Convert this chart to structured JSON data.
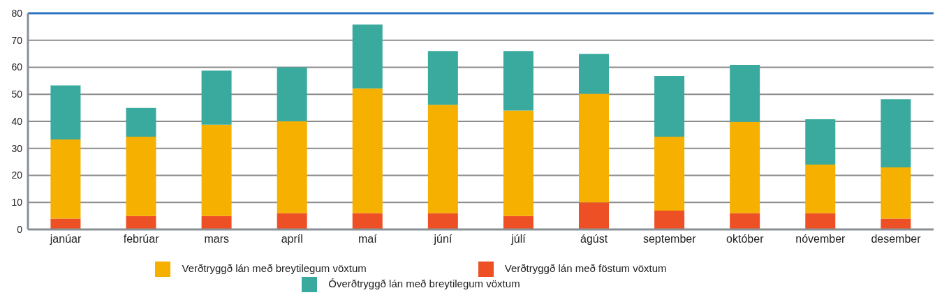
{
  "chart_data": {
    "type": "bar",
    "stacked": true,
    "categories": [
      "janúar",
      "febrúar",
      "mars",
      "apríl",
      "maí",
      "júní",
      "júlí",
      "ágúst",
      "september",
      "október",
      "nóvember",
      "desember"
    ],
    "series": [
      {
        "name": "Verðtryggð lán með föstum vöxtum",
        "color": "#ee5025",
        "values": [
          4,
          5,
          5,
          6,
          6,
          6,
          5,
          10,
          7,
          6,
          6,
          4
        ]
      },
      {
        "name": "Verðtryggð lán með breytilegum vöxtum",
        "color": "#f5b000",
        "values": [
          29.3,
          29.3,
          33.8,
          34,
          46.2,
          40.1,
          39,
          40.2,
          27.3,
          33.8,
          18,
          19
        ]
      },
      {
        "name": "Óverðtryggð lán með breytilegum vöxtum",
        "color": "#3aa99e",
        "values": [
          20,
          10.7,
          20,
          20,
          23.6,
          19.9,
          22,
          14.8,
          22.5,
          21.1,
          16.8,
          25.2
        ]
      }
    ],
    "ylim": [
      0,
      80
    ],
    "yticks": [
      0,
      10,
      20,
      30,
      40,
      50,
      60,
      70,
      80
    ],
    "grid": "y",
    "legend": "bottom"
  }
}
